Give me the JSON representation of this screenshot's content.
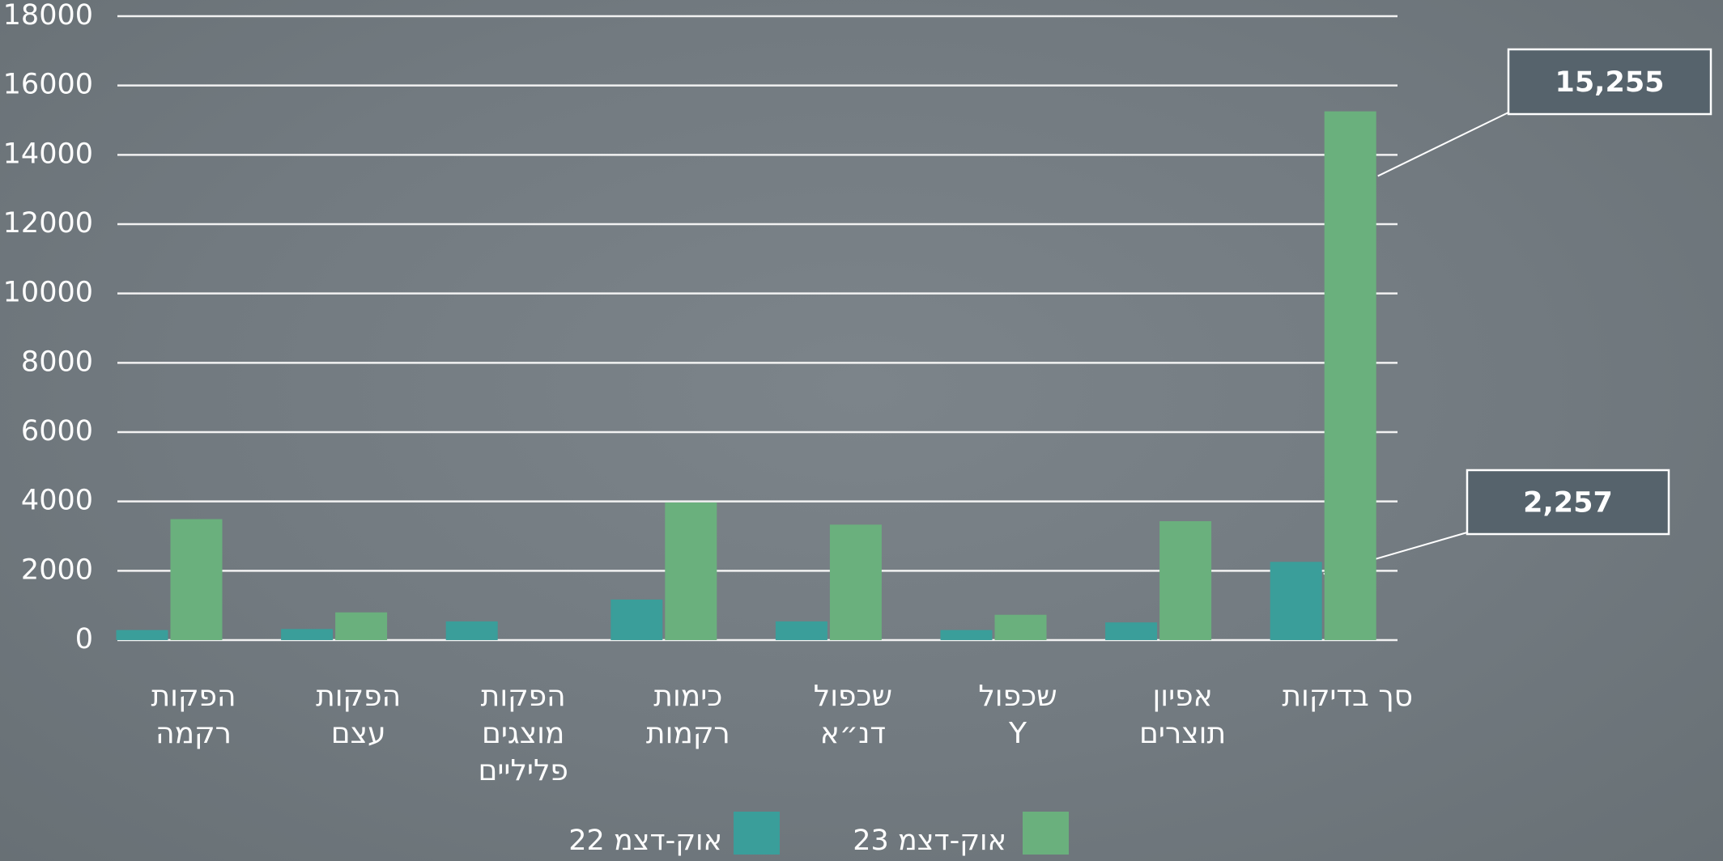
{
  "chart_data": {
    "type": "bar",
    "categories": [
      "הפקות\nרקמה",
      "הפקות\nעצם",
      "הפקות\nמוצגים\nפליליים",
      "כימות\nרקמות",
      "שכפול\nדנ״א",
      "שכפול\nY",
      "אפיון\nתוצרים",
      "סך בדיקות"
    ],
    "series": [
      {
        "name": "אוק-דצמ 22",
        "color": "#3a9e9a",
        "values": [
          290,
          320,
          540,
          1170,
          540,
          290,
          510,
          2257
        ],
        "value_labels": [
          null,
          null,
          null,
          null,
          null,
          null,
          null,
          "2,257"
        ]
      },
      {
        "name": "אוק-דצמ 23",
        "color": "#6ab07d",
        "values": [
          3490,
          800,
          0,
          3970,
          3330,
          730,
          3430,
          15255
        ],
        "value_labels": [
          null,
          null,
          null,
          null,
          null,
          null,
          null,
          "15,255"
        ]
      }
    ],
    "ylim": [
      0,
      18000
    ],
    "yticks": [
      0,
      2000,
      4000,
      6000,
      8000,
      10000,
      12000,
      14000,
      16000,
      18000
    ],
    "grid": true
  }
}
